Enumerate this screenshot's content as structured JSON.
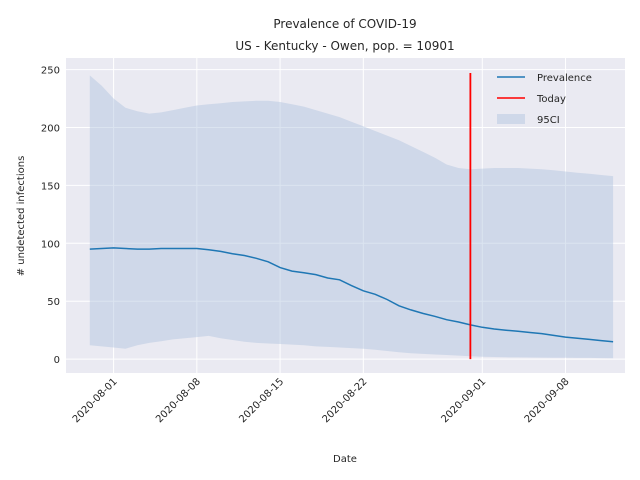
{
  "chart_data": {
    "type": "line",
    "title": "Prevalence of COVID-19",
    "subtitle": "US - Kentucky - Owen, pop. = 10901",
    "xlabel": "Date",
    "ylabel": "# undetected infections",
    "ylim": [
      -12,
      260
    ],
    "xlim": [
      "2020-07-28",
      "2020-09-13"
    ],
    "yticks": [
      0,
      50,
      100,
      150,
      200,
      250
    ],
    "xticks": [
      "2020-08-01",
      "2020-08-08",
      "2020-08-15",
      "2020-08-22",
      "2020-09-01",
      "2020-09-08"
    ],
    "grid": true,
    "legend_position": "top-right",
    "today": "2020-08-31",
    "today_range": [
      0,
      247
    ],
    "colors": {
      "prevalence": "#1f77b4",
      "today": "#ff0000",
      "ci": "#b0c4de",
      "background": "#eaeaf2"
    },
    "legend": [
      {
        "label": "Prevalence",
        "kind": "line",
        "color": "#1f77b4"
      },
      {
        "label": "Today",
        "kind": "line",
        "color": "#ff0000"
      },
      {
        "label": "95CI",
        "kind": "patch",
        "color": "#b0c4de"
      }
    ],
    "series": [
      {
        "name": "Prevalence",
        "x": [
          "2020-07-30",
          "2020-07-31",
          "2020-08-01",
          "2020-08-02",
          "2020-08-03",
          "2020-08-04",
          "2020-08-05",
          "2020-08-06",
          "2020-08-07",
          "2020-08-08",
          "2020-08-09",
          "2020-08-10",
          "2020-08-11",
          "2020-08-12",
          "2020-08-13",
          "2020-08-14",
          "2020-08-15",
          "2020-08-16",
          "2020-08-17",
          "2020-08-18",
          "2020-08-19",
          "2020-08-20",
          "2020-08-21",
          "2020-08-22",
          "2020-08-23",
          "2020-08-24",
          "2020-08-25",
          "2020-08-26",
          "2020-08-27",
          "2020-08-28",
          "2020-08-29",
          "2020-08-30",
          "2020-08-31",
          "2020-09-01",
          "2020-09-02",
          "2020-09-03",
          "2020-09-04",
          "2020-09-05",
          "2020-09-06",
          "2020-09-07",
          "2020-09-08",
          "2020-09-09",
          "2020-09-10",
          "2020-09-11",
          "2020-09-12"
        ],
        "values": [
          95,
          95.5,
          96,
          95.5,
          95,
          95,
          95.5,
          95.5,
          95.5,
          95.5,
          94.5,
          93,
          91,
          89.5,
          87,
          84,
          79,
          76,
          74.5,
          73,
          70,
          68.5,
          63.5,
          59,
          56,
          51.5,
          46,
          42.5,
          39.5,
          37,
          34,
          32,
          29.5,
          27.5,
          26,
          25,
          24,
          23,
          22,
          20.5,
          19,
          18,
          17,
          16,
          15
        ]
      }
    ],
    "ci": {
      "name": "95CI",
      "x": [
        "2020-07-30",
        "2020-07-31",
        "2020-08-01",
        "2020-08-02",
        "2020-08-03",
        "2020-08-04",
        "2020-08-05",
        "2020-08-06",
        "2020-08-07",
        "2020-08-08",
        "2020-08-09",
        "2020-08-10",
        "2020-08-11",
        "2020-08-12",
        "2020-08-13",
        "2020-08-14",
        "2020-08-15",
        "2020-08-16",
        "2020-08-17",
        "2020-08-18",
        "2020-08-19",
        "2020-08-20",
        "2020-08-21",
        "2020-08-22",
        "2020-08-23",
        "2020-08-24",
        "2020-08-25",
        "2020-08-26",
        "2020-08-27",
        "2020-08-28",
        "2020-08-29",
        "2020-08-30",
        "2020-08-31",
        "2020-09-01",
        "2020-09-02",
        "2020-09-03",
        "2020-09-04",
        "2020-09-05",
        "2020-09-06",
        "2020-09-07",
        "2020-09-08",
        "2020-09-09",
        "2020-09-10",
        "2020-09-11",
        "2020-09-12"
      ],
      "upper": [
        245,
        236,
        225,
        217,
        214,
        212,
        213,
        215,
        217,
        219,
        220,
        221,
        222,
        222.5,
        223,
        223,
        222,
        220,
        218,
        215,
        212,
        209,
        205,
        201,
        197,
        193,
        189,
        184,
        179,
        174,
        168,
        165,
        164,
        164.5,
        165,
        165,
        165,
        164.5,
        164,
        163,
        162,
        161,
        160,
        159,
        158
      ],
      "lower": [
        12,
        11,
        10,
        9,
        12,
        14,
        15.5,
        17,
        18,
        19,
        20,
        18,
        16.5,
        15,
        14,
        13.5,
        13,
        12.5,
        12,
        11,
        10.5,
        10,
        9.5,
        9,
        8,
        7,
        6,
        5,
        4.5,
        4,
        3.5,
        3,
        2.5,
        2,
        1.8,
        1.6,
        1.5,
        1.4,
        1.3,
        1.2,
        1.1,
        1,
        1,
        0.9,
        0.8
      ]
    }
  }
}
